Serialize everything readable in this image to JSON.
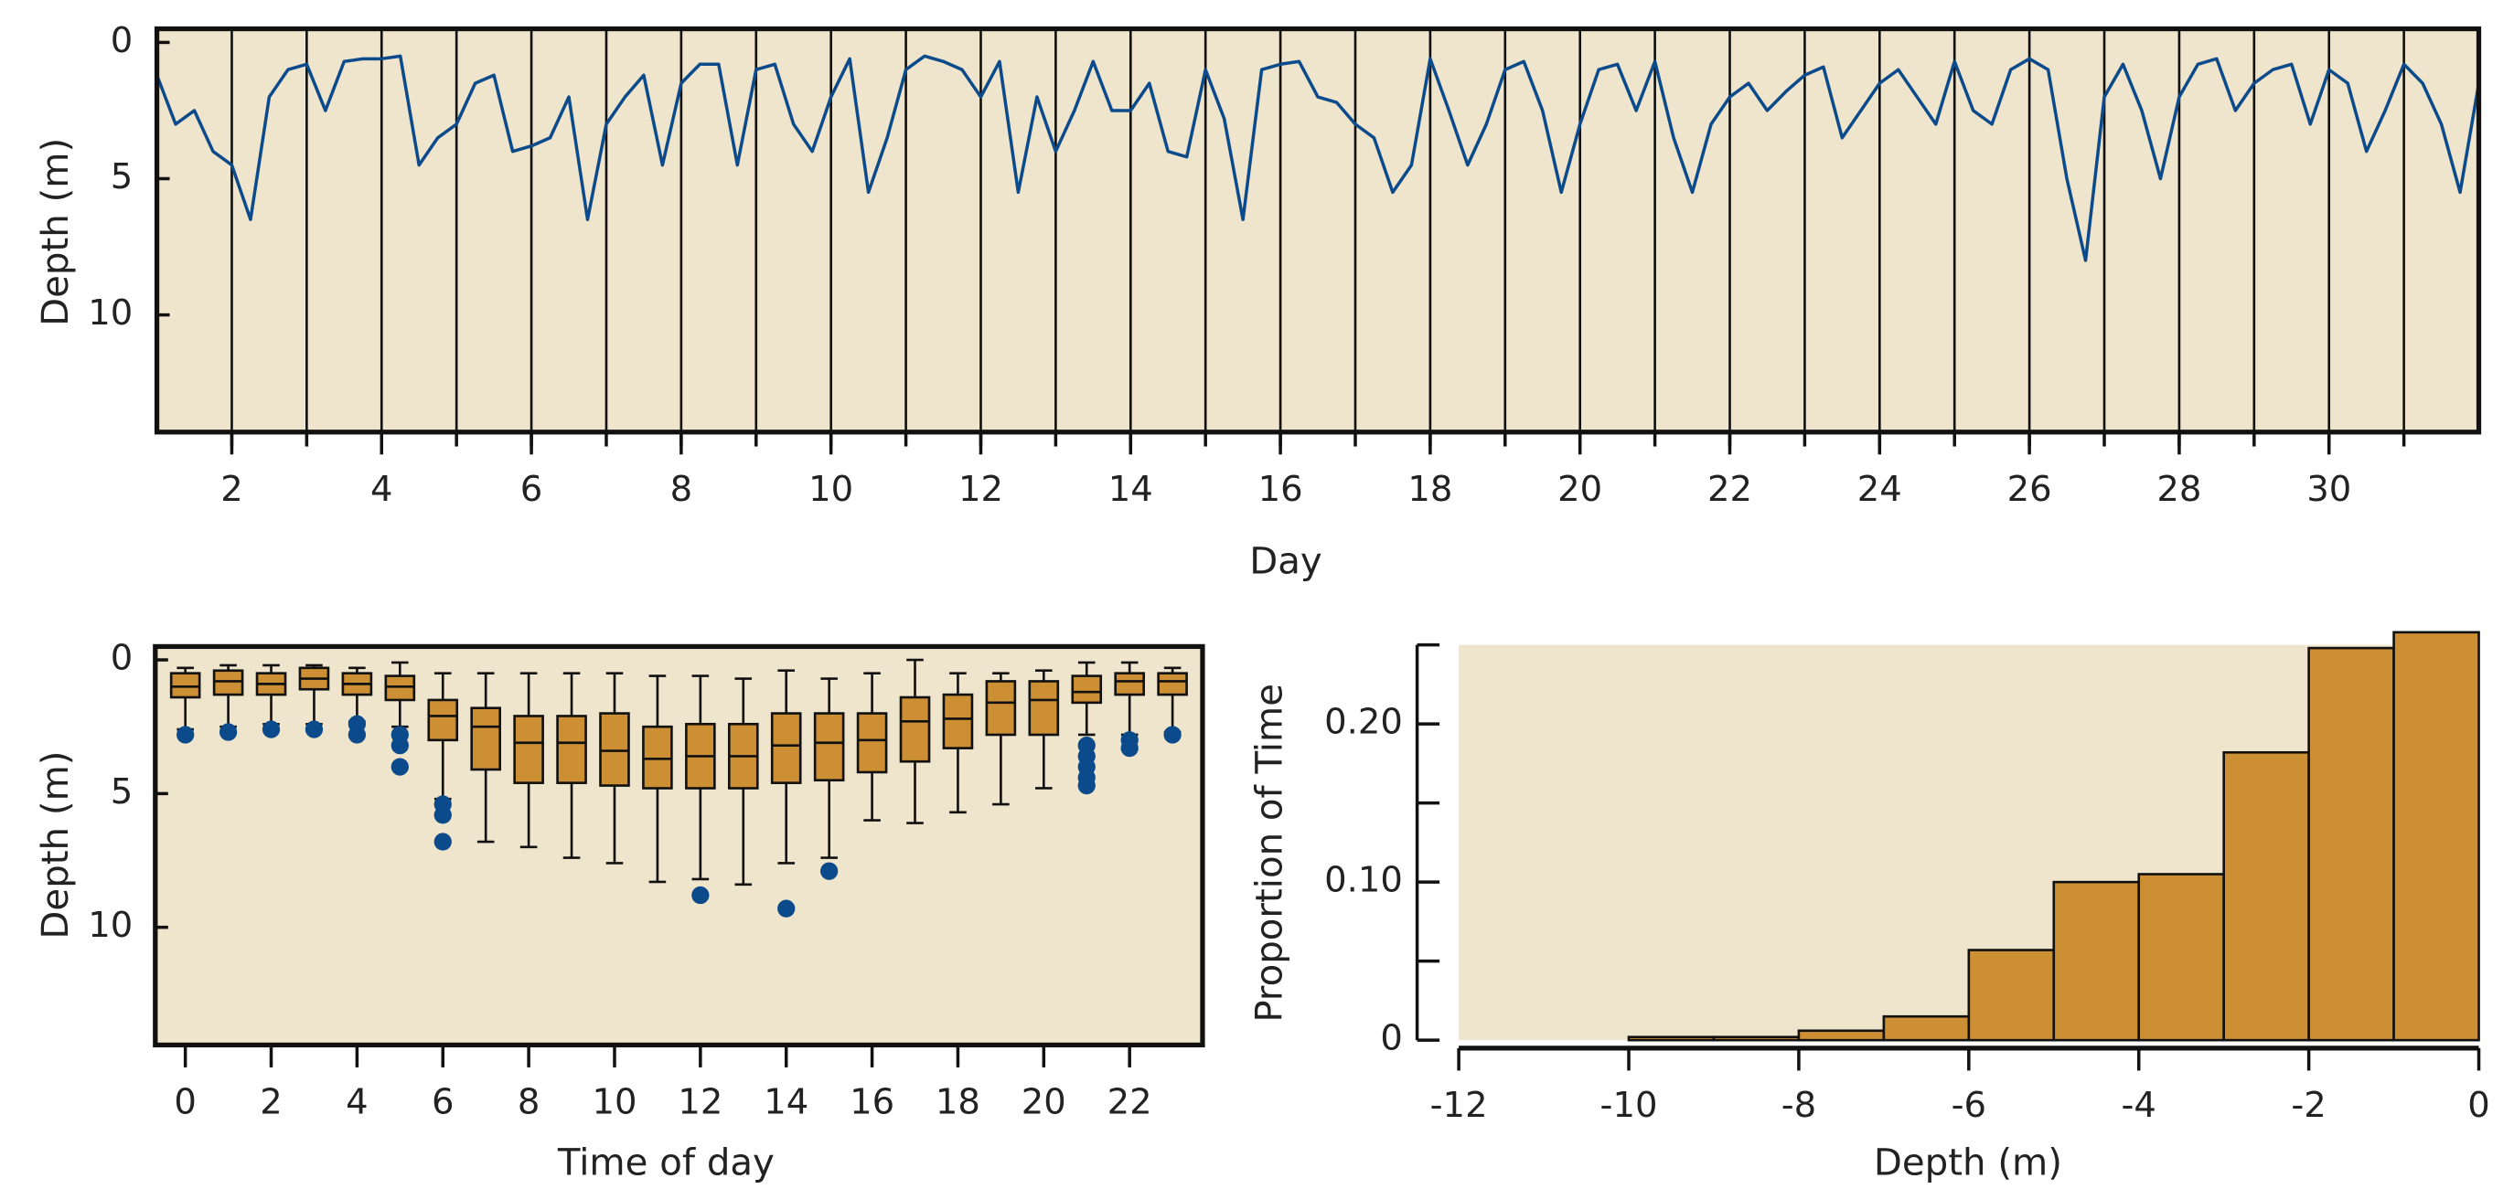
{
  "chart_data": [
    {
      "type": "line",
      "xlabel": "Day",
      "ylabel": "Depth (m)",
      "background": "#efe4cc",
      "xlim": [
        1,
        32
      ],
      "ylim": [
        14.3,
        -0.5
      ],
      "xticks": [
        2,
        4,
        6,
        8,
        10,
        12,
        14,
        16,
        18,
        20,
        22,
        24,
        26,
        28,
        30
      ],
      "xminorticks": [
        2,
        3,
        4,
        5,
        6,
        7,
        8,
        9,
        10,
        11,
        12,
        13,
        14,
        15,
        16,
        17,
        18,
        19,
        20,
        21,
        22,
        23,
        24,
        25,
        26,
        27,
        28,
        29,
        30,
        31
      ],
      "yticks": [
        0,
        5,
        10
      ],
      "grid": true,
      "x": [
        1,
        1.25,
        1.5,
        1.75,
        2,
        2.25,
        2.5,
        2.75,
        3,
        3.25,
        3.5,
        3.75,
        4,
        4.25,
        4.5,
        4.75,
        5,
        5.25,
        5.5,
        5.75,
        6,
        6.25,
        6.5,
        6.75,
        7,
        7.25,
        7.5,
        7.75,
        8,
        8.25,
        8.5,
        8.75,
        9,
        9.25,
        9.5,
        9.75,
        10,
        10.25,
        10.5,
        10.75,
        11,
        11.25,
        11.5,
        11.75,
        12,
        12.25,
        12.5,
        12.75,
        13,
        13.25,
        13.5,
        13.75,
        14,
        14.25,
        14.5,
        14.75,
        15,
        15.25,
        15.5,
        15.75,
        16,
        16.25,
        16.5,
        16.75,
        17,
        17.25,
        17.5,
        17.75,
        18,
        18.25,
        18.5,
        18.75,
        19,
        19.25,
        19.5,
        19.75,
        20,
        20.25,
        20.5,
        20.75,
        21,
        21.25,
        21.5,
        21.75,
        22,
        22.25,
        22.5,
        22.75,
        23,
        23.25,
        23.5,
        23.75,
        24,
        24.25,
        24.5,
        24.75,
        25,
        25.25,
        25.5,
        25.75,
        26,
        26.25,
        26.5,
        26.75,
        27,
        27.25,
        27.5,
        27.75,
        28,
        28.25,
        28.5,
        28.75,
        29,
        29.25,
        29.5,
        29.75,
        30,
        30.25,
        30.5,
        30.75,
        31,
        31.25,
        31.5,
        31.75,
        32
      ],
      "series": [
        {
          "name": "Depth",
          "color": "#0b4a8b",
          "values": [
            1.2,
            3.0,
            2.5,
            4.0,
            4.5,
            6.5,
            2.0,
            1.0,
            0.8,
            2.5,
            0.7,
            0.6,
            0.6,
            0.5,
            4.5,
            3.5,
            3.0,
            1.5,
            1.2,
            4.0,
            3.8,
            3.5,
            2.0,
            6.5,
            3.0,
            2.0,
            1.2,
            4.5,
            1.5,
            0.8,
            0.8,
            4.5,
            1.0,
            0.8,
            3.0,
            4.0,
            2.0,
            0.6,
            5.5,
            3.5,
            1.0,
            0.5,
            0.7,
            1.0,
            2.0,
            0.7,
            5.5,
            2.0,
            4.0,
            2.5,
            0.7,
            2.5,
            2.5,
            1.5,
            4.0,
            4.2,
            1.0,
            2.8,
            6.5,
            1.0,
            0.8,
            0.7,
            2.0,
            2.2,
            3.0,
            3.5,
            5.5,
            4.5,
            0.6,
            2.5,
            4.5,
            3.0,
            1.0,
            0.7,
            2.5,
            5.5,
            3.0,
            1.0,
            0.8,
            2.5,
            0.7,
            3.5,
            5.5,
            3.0,
            2.0,
            1.5,
            2.5,
            1.8,
            1.2,
            0.9,
            3.5,
            2.5,
            1.5,
            1.0,
            2.0,
            3.0,
            0.7,
            2.5,
            3.0,
            1.0,
            0.6,
            1.0,
            5.0,
            8.0,
            2.0,
            0.8,
            2.5,
            5.0,
            2.0,
            0.8,
            0.6,
            2.5,
            1.5,
            1.0,
            0.8,
            3.0,
            1.0,
            1.5,
            4.0,
            2.5,
            0.8,
            1.5,
            3.0,
            5.5,
            1.5
          ]
        }
      ]
    },
    {
      "type": "box",
      "xlabel": "Time of day",
      "ylabel": "Depth (m)",
      "background": "#efe4cc",
      "color": "#cc8f33",
      "outlier_color": "#0b4a8b",
      "xlim": [
        -0.7,
        23.7
      ],
      "ylim": [
        14.4,
        -0.5
      ],
      "xticks": [
        0,
        2,
        4,
        6,
        8,
        10,
        12,
        14,
        16,
        18,
        20,
        22
      ],
      "yticks": [
        0,
        5,
        10
      ],
      "boxes": [
        {
          "x": 0,
          "min": 0.3,
          "q1": 0.5,
          "median": 1.0,
          "q3": 1.4,
          "max": 2.6,
          "outliers": [
            2.8
          ]
        },
        {
          "x": 1,
          "min": 0.2,
          "q1": 0.4,
          "median": 0.8,
          "q3": 1.3,
          "max": 2.5,
          "outliers": [
            2.7
          ]
        },
        {
          "x": 2,
          "min": 0.2,
          "q1": 0.5,
          "median": 0.9,
          "q3": 1.3,
          "max": 2.4,
          "outliers": [
            2.6
          ]
        },
        {
          "x": 3,
          "min": 0.2,
          "q1": 0.3,
          "median": 0.7,
          "q3": 1.1,
          "max": 2.4,
          "outliers": [
            2.6
          ]
        },
        {
          "x": 4,
          "min": 0.3,
          "q1": 0.5,
          "median": 0.9,
          "q3": 1.3,
          "max": 2.3,
          "outliers": [
            2.4,
            2.8
          ]
        },
        {
          "x": 5,
          "min": 0.1,
          "q1": 0.6,
          "median": 1.0,
          "q3": 1.5,
          "max": 2.5,
          "outliers": [
            2.8,
            3.2,
            4.0
          ]
        },
        {
          "x": 6,
          "min": 0.5,
          "q1": 1.5,
          "median": 2.1,
          "q3": 3.0,
          "max": 5.2,
          "outliers": [
            5.4,
            5.8,
            6.8
          ]
        },
        {
          "x": 7,
          "min": 0.5,
          "q1": 1.8,
          "median": 2.5,
          "q3": 4.1,
          "max": 6.8,
          "outliers": []
        },
        {
          "x": 8,
          "min": 0.5,
          "q1": 2.1,
          "median": 3.1,
          "q3": 4.6,
          "max": 7.0,
          "outliers": []
        },
        {
          "x": 9,
          "min": 0.5,
          "q1": 2.1,
          "median": 3.1,
          "q3": 4.6,
          "max": 7.4,
          "outliers": []
        },
        {
          "x": 10,
          "min": 0.5,
          "q1": 2.0,
          "median": 3.4,
          "q3": 4.7,
          "max": 7.6,
          "outliers": []
        },
        {
          "x": 11,
          "min": 0.6,
          "q1": 2.5,
          "median": 3.7,
          "q3": 4.8,
          "max": 8.3,
          "outliers": []
        },
        {
          "x": 12,
          "min": 0.6,
          "q1": 2.4,
          "median": 3.6,
          "q3": 4.8,
          "max": 8.2,
          "outliers": [
            8.8
          ]
        },
        {
          "x": 13,
          "min": 0.7,
          "q1": 2.4,
          "median": 3.6,
          "q3": 4.8,
          "max": 8.4,
          "outliers": []
        },
        {
          "x": 14,
          "min": 0.4,
          "q1": 2.0,
          "median": 3.2,
          "q3": 4.6,
          "max": 7.6,
          "outliers": [
            9.3
          ]
        },
        {
          "x": 15,
          "min": 0.7,
          "q1": 2.0,
          "median": 3.1,
          "q3": 4.5,
          "max": 7.4,
          "outliers": [
            7.9
          ]
        },
        {
          "x": 16,
          "min": 0.5,
          "q1": 2.0,
          "median": 3.0,
          "q3": 4.2,
          "max": 6.0,
          "outliers": []
        },
        {
          "x": 17,
          "min": 0.0,
          "q1": 1.4,
          "median": 2.3,
          "q3": 3.8,
          "max": 6.1,
          "outliers": []
        },
        {
          "x": 18,
          "min": 0.5,
          "q1": 1.3,
          "median": 2.2,
          "q3": 3.3,
          "max": 5.7,
          "outliers": []
        },
        {
          "x": 19,
          "min": 0.5,
          "q1": 0.8,
          "median": 1.6,
          "q3": 2.8,
          "max": 5.4,
          "outliers": []
        },
        {
          "x": 20,
          "min": 0.4,
          "q1": 0.8,
          "median": 1.5,
          "q3": 2.8,
          "max": 4.8,
          "outliers": []
        },
        {
          "x": 21,
          "min": 0.1,
          "q1": 0.6,
          "median": 1.2,
          "q3": 1.6,
          "max": 2.8,
          "outliers": [
            3.2,
            3.6,
            4.0,
            4.4,
            4.7
          ]
        },
        {
          "x": 22,
          "min": 0.1,
          "q1": 0.5,
          "median": 0.8,
          "q3": 1.3,
          "max": 2.8,
          "outliers": [
            3.0,
            3.3
          ]
        },
        {
          "x": 23,
          "min": 0.3,
          "q1": 0.5,
          "median": 0.8,
          "q3": 1.3,
          "max": 2.7,
          "outliers": [
            2.8
          ]
        }
      ]
    },
    {
      "type": "histogram",
      "xlabel": "Depth (m)",
      "ylabel": "Proportion of Time",
      "background": "#efe4cc",
      "color": "#cc8f33",
      "xlim": [
        -12,
        0
      ],
      "ylim": [
        0,
        0.25
      ],
      "xticks": [
        -12,
        -10,
        -8,
        -6,
        -4,
        -2,
        0
      ],
      "yticks": [
        0,
        {
          "value": 0.1,
          "label": "0.10"
        },
        {
          "value": 0.2,
          "label": "0.20"
        }
      ],
      "yminorticks": [
        0.05,
        0.15,
        0.25
      ],
      "bins": [
        -10,
        -9,
        -8,
        -7,
        -6,
        -5,
        -4,
        -3,
        -2,
        -1,
        0
      ],
      "values": [
        0.002,
        0.002,
        0.006,
        0.015,
        0.057,
        0.1,
        0.105,
        0.182,
        0.248,
        0.258
      ]
    }
  ]
}
